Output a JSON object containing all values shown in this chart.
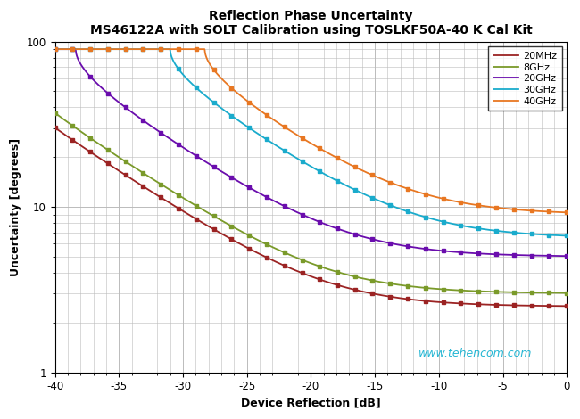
{
  "title_line1": "Reflection Phase Uncertainty",
  "title_line2": "MS46122A with SOLT Calibration using TOSLKF50A-40 K Cal Kit",
  "xlabel": "Device Reflection [dB]",
  "ylabel": "Uncertainty [degrees]",
  "xmin": -40,
  "xmax": 0,
  "ymin": 1,
  "ymax": 100,
  "watermark": "www.tehencom.com",
  "legend_labels": [
    "20MHz",
    "8GHz",
    "20GHz",
    "30GHz",
    "40GHz"
  ],
  "colors": [
    "#9B2323",
    "#7A9A2A",
    "#6A0DAD",
    "#1AABCC",
    "#E87722"
  ],
  "background_color": "#FFFFFF",
  "grid_color": "#BBBBBB",
  "curve_params": [
    {
      "noise_floor": 0.008,
      "res": 0.008
    },
    {
      "noise_floor": 0.01,
      "res": 0.01
    },
    {
      "noise_floor": 0.02,
      "res": 0.045
    },
    {
      "noise_floor": 0.03,
      "res": 0.13
    },
    {
      "noise_floor": 0.05,
      "res": 0.18
    }
  ]
}
